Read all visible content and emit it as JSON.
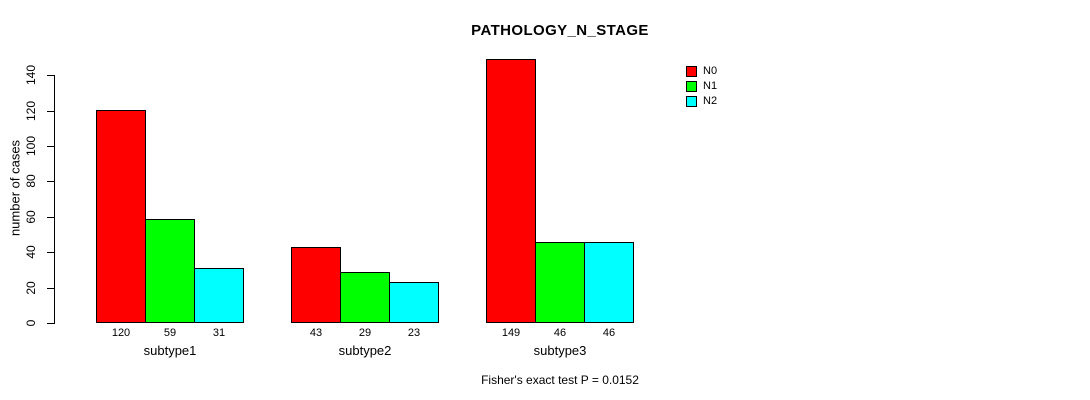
{
  "title": "PATHOLOGY_N_STAGE",
  "ylabel": "number of cases",
  "annotation": "Fisher's exact test P = 0.0152",
  "chart_data": {
    "type": "bar",
    "title": "PATHOLOGY_N_STAGE",
    "xlabel": "",
    "ylabel": "number of cases",
    "categories": [
      "subtype1",
      "subtype2",
      "subtype3"
    ],
    "series": [
      {
        "name": "N0",
        "color": "#FF0000",
        "values": [
          120,
          43,
          149
        ]
      },
      {
        "name": "N1",
        "color": "#00FF00",
        "values": [
          59,
          29,
          46
        ]
      },
      {
        "name": "N2",
        "color": "#00FFFF",
        "values": [
          31,
          23,
          46
        ]
      }
    ],
    "value_labels": [
      [
        "120",
        "59",
        "31"
      ],
      [
        "43",
        "29",
        "23"
      ],
      [
        "149",
        "46",
        "46"
      ]
    ],
    "ylim": [
      0,
      140
    ],
    "yticks": [
      0,
      20,
      40,
      60,
      80,
      100,
      120,
      140
    ],
    "grid": false,
    "legend_position": "top-right",
    "annotation": "Fisher's exact test P = 0.0152"
  }
}
